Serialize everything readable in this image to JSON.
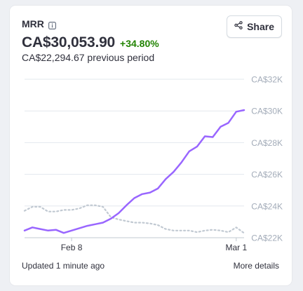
{
  "metric": {
    "title": "MRR",
    "value": "CA$30,053.90",
    "delta": "+34.80%",
    "previous": "CA$22,294.67 previous period"
  },
  "share": {
    "label": "Share"
  },
  "footer": {
    "updated": "Updated 1 minute ago",
    "more": "More details"
  },
  "colors": {
    "current": "#9966ff",
    "previous": "#c1c9d2",
    "delta": "#228403",
    "grid": "#e3e8ee",
    "tick": "#a3acb9"
  },
  "chart_data": {
    "type": "line",
    "title": "",
    "xlabel": "",
    "ylabel": "",
    "y_ticks": [
      "CA$22K",
      "CA$24K",
      "CA$26K",
      "CA$28K",
      "CA$30K",
      "CA$32K"
    ],
    "ylim": [
      22000,
      32000
    ],
    "x_ticks": [
      {
        "label": "Feb 8",
        "index": 6
      },
      {
        "label": "Mar 1",
        "index": 27
      }
    ],
    "grid": true,
    "legend": "none",
    "series": [
      {
        "style": "solid",
        "values": [
          22450,
          22650,
          22550,
          22450,
          22500,
          22300,
          22450,
          22600,
          22750,
          22850,
          22950,
          23200,
          23550,
          24050,
          24500,
          24750,
          24850,
          25100,
          25700,
          26150,
          26750,
          27450,
          27750,
          28400,
          28350,
          29000,
          29250,
          29950,
          30054
        ]
      },
      {
        "style": "dotted",
        "values": [
          23700,
          23950,
          23950,
          23650,
          23650,
          23750,
          23750,
          23850,
          24050,
          24050,
          23950,
          23300,
          23150,
          23050,
          22950,
          22950,
          22900,
          22800,
          22550,
          22450,
          22450,
          22450,
          22350,
          22450,
          22500,
          22450,
          22350,
          22650,
          22294
        ]
      }
    ]
  }
}
